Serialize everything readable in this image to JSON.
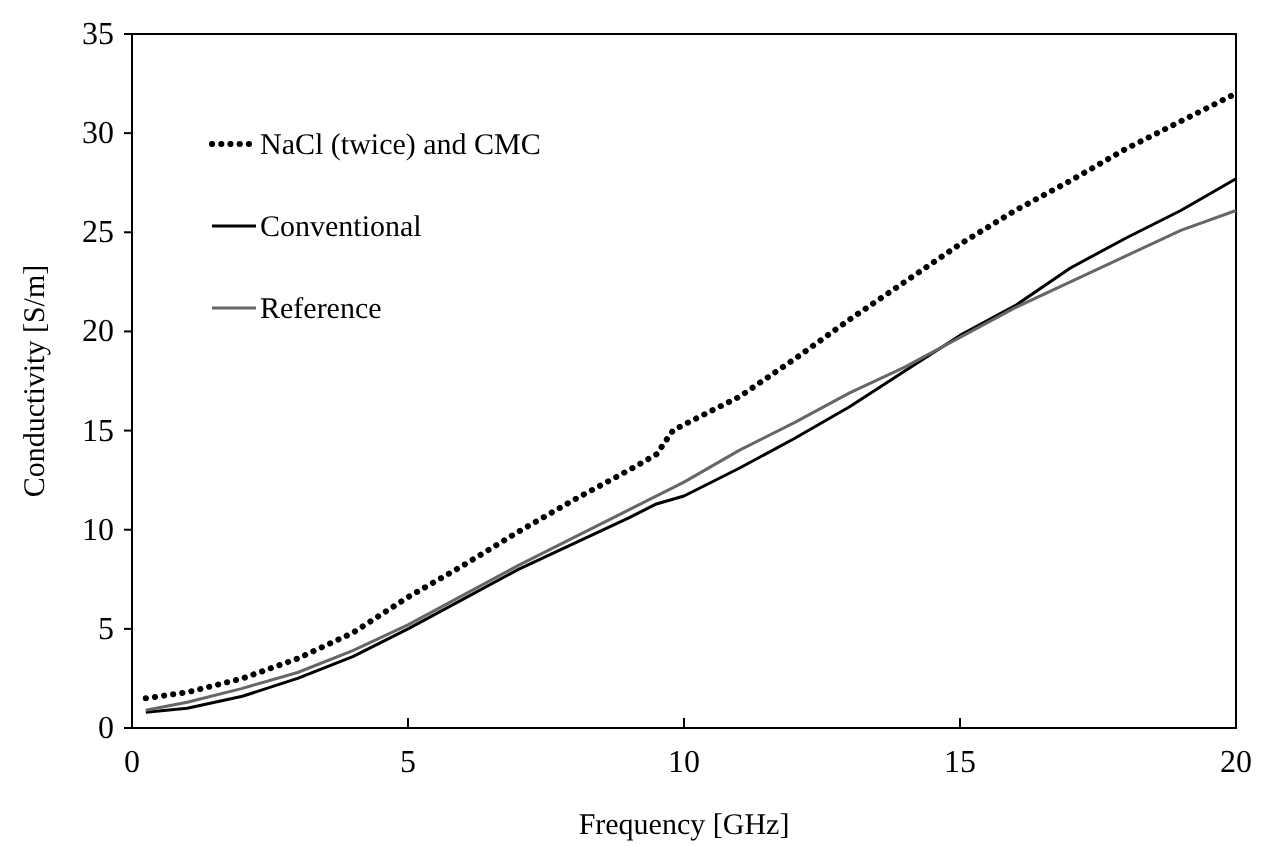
{
  "chart_data": {
    "type": "line",
    "xlabel": "Frequency [GHz]",
    "ylabel": "Conductivity [S/m]",
    "xlim": [
      0,
      20
    ],
    "ylim": [
      0,
      35
    ],
    "xticks": [
      0,
      5,
      10,
      15,
      20
    ],
    "yticks": [
      0,
      5,
      10,
      15,
      20,
      25,
      30,
      35
    ],
    "grid": false,
    "legend": "top left",
    "marker": "none",
    "series": [
      {
        "name": "NaCl (twice) and CMC",
        "color": "#000000",
        "line_style": "dotted",
        "x": [
          0.25,
          1,
          2,
          3,
          4,
          5,
          6,
          7,
          8,
          9,
          9.5,
          9.8,
          10,
          11,
          12,
          13,
          14,
          15,
          16,
          17,
          18,
          19,
          20
        ],
        "values": [
          1.5,
          1.8,
          2.5,
          3.5,
          4.8,
          6.6,
          8.2,
          9.9,
          11.5,
          13.0,
          13.8,
          15.0,
          15.3,
          16.7,
          18.6,
          20.6,
          22.5,
          24.4,
          26.1,
          27.6,
          29.2,
          30.6,
          32.0
        ]
      },
      {
        "name": "Conventional",
        "color": "#000000",
        "line_style": "solid",
        "x": [
          0.25,
          1,
          2,
          3,
          4,
          5,
          6,
          7,
          8,
          9,
          9.5,
          10,
          11,
          12,
          13,
          14,
          15,
          16,
          17,
          18,
          19,
          20
        ],
        "values": [
          0.8,
          1.0,
          1.6,
          2.5,
          3.6,
          5.0,
          6.5,
          8.0,
          9.3,
          10.6,
          11.3,
          11.7,
          13.1,
          14.6,
          16.2,
          18.0,
          19.8,
          21.3,
          23.2,
          24.7,
          26.1,
          27.7
        ]
      },
      {
        "name": "Reference",
        "color": "#666666",
        "line_style": "solid",
        "x": [
          0.25,
          1,
          2,
          3,
          4,
          5,
          6,
          7,
          8,
          9,
          10,
          11,
          12,
          13,
          14,
          15,
          16,
          17,
          18,
          19,
          20
        ],
        "values": [
          0.9,
          1.3,
          2.0,
          2.8,
          3.9,
          5.2,
          6.7,
          8.2,
          9.6,
          11.0,
          12.4,
          14.0,
          15.4,
          16.9,
          18.2,
          19.7,
          21.2,
          22.5,
          23.8,
          25.1,
          26.1
        ]
      }
    ]
  }
}
